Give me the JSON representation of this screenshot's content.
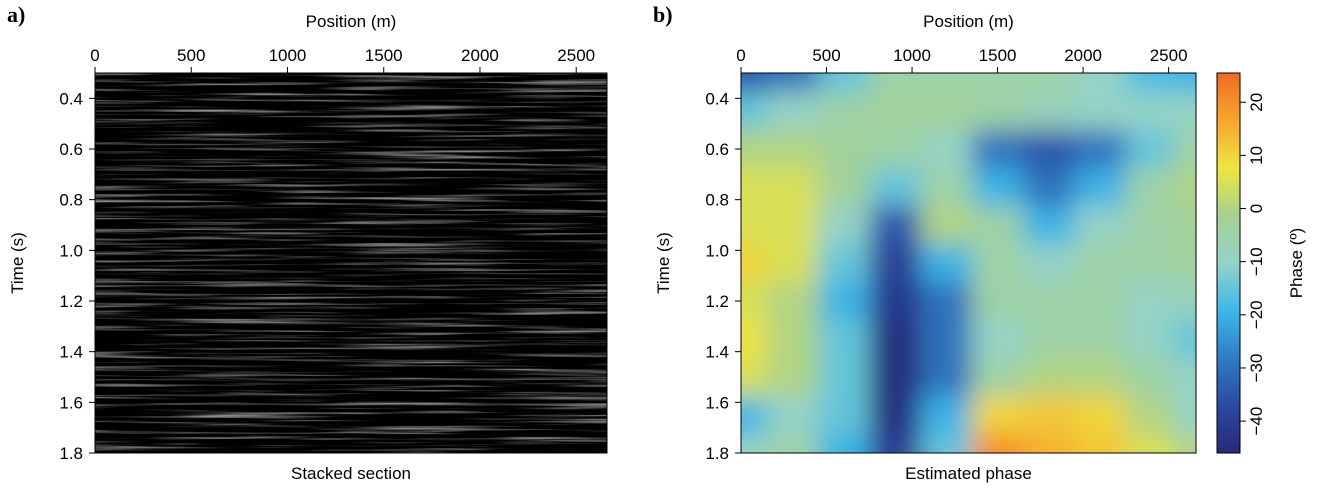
{
  "chart_data": [
    {
      "type": "image",
      "panel_label": "a)",
      "title": "Stacked section",
      "x_label": "Position (m)",
      "y_label": "Time (s)",
      "xlim": [
        0,
        2660
      ],
      "xticks": [
        0,
        500,
        1000,
        1500,
        2000,
        2500
      ],
      "ylim": [
        0.3,
        1.8
      ],
      "y_inverted": true,
      "yticks": [
        0.4,
        0.6,
        0.8,
        {
          "value": 1,
          "label": "1.0"
        },
        1.2,
        1.4,
        1.6,
        1.8
      ]
    },
    {
      "type": "heatmap",
      "panel_label": "b)",
      "title": "Estimated phase",
      "x_label": "Position (m)",
      "y_label": "Time (s)",
      "xlim": [
        0,
        2660
      ],
      "xticks": [
        0,
        500,
        1000,
        1500,
        2000,
        2500
      ],
      "ylim": [
        0.3,
        1.8
      ],
      "y_inverted": true,
      "yticks": [
        0.4,
        0.6,
        0.8,
        {
          "value": 1,
          "label": "1.0"
        },
        1.2,
        1.4,
        1.6,
        1.8
      ],
      "x": [
        0,
        300,
        600,
        900,
        1200,
        1500,
        1800,
        2100,
        2400,
        2650
      ],
      "y": [
        0.3,
        0.45,
        0.6,
        0.75,
        0.9,
        1.05,
        1.2,
        1.35,
        1.5,
        1.65,
        1.8
      ],
      "z": [
        [
          -35,
          -30,
          -15,
          -5,
          -5,
          -5,
          -5,
          -10,
          -18,
          -20
        ],
        [
          -15,
          -10,
          -5,
          -3,
          -3,
          -5,
          -8,
          -10,
          -10,
          -10
        ],
        [
          0,
          0,
          -3,
          -5,
          -10,
          -30,
          -35,
          -30,
          -15,
          -5
        ],
        [
          5,
          5,
          -3,
          -15,
          -5,
          -20,
          -30,
          -20,
          -5,
          0
        ],
        [
          5,
          5,
          -10,
          -35,
          0,
          -5,
          -20,
          -10,
          -5,
          -3
        ],
        [
          10,
          5,
          -15,
          -40,
          -20,
          -5,
          -10,
          -5,
          -5,
          -3
        ],
        [
          5,
          0,
          -20,
          -42,
          -30,
          -5,
          -5,
          -5,
          -10,
          -8
        ],
        [
          8,
          0,
          -15,
          -45,
          -30,
          -10,
          -5,
          -5,
          -10,
          -15
        ],
        [
          5,
          0,
          -15,
          -45,
          -30,
          -5,
          0,
          0,
          -5,
          -10
        ],
        [
          -20,
          -10,
          -15,
          -45,
          -20,
          10,
          12,
          10,
          0,
          -10
        ],
        [
          -10,
          -5,
          -20,
          -40,
          -15,
          20,
          15,
          12,
          5,
          0
        ]
      ],
      "colorbar_label": "Phase (º)",
      "clim": [
        -46,
        25.5
      ],
      "cticks": [
        {
          "value": -40,
          "label": "−40"
        },
        {
          "value": -30,
          "label": "−30"
        },
        {
          "value": -20,
          "label": "−20"
        },
        {
          "value": -10,
          "label": "−10"
        },
        0,
        10,
        20
      ],
      "colormap": [
        "#262a78",
        "#2b4aa2",
        "#2f7cc3",
        "#3cb9e8",
        "#93d3c8",
        "#a6d18f",
        "#eee63f",
        "#f7a62d",
        "#ee6a24"
      ]
    }
  ]
}
